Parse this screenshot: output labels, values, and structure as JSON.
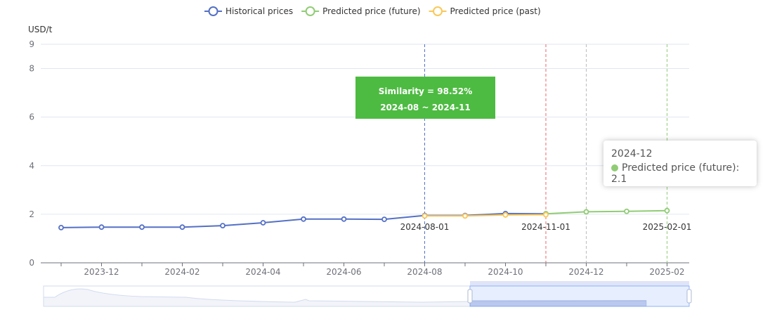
{
  "chart_data": {
    "type": "line",
    "unit_label": "USD/t",
    "x_ticks": [
      "2023-12",
      "2024-02",
      "2024-04",
      "2024-06",
      "2024-08",
      "2024-10",
      "2024-12",
      "2025-02"
    ],
    "y_ticks": [
      0,
      2,
      4,
      6,
      8,
      9
    ],
    "ylim": [
      0,
      9
    ],
    "legend_position": "top-center",
    "grid": true,
    "series": [
      {
        "name": "Historical prices",
        "color": "#5470c6",
        "points": [
          {
            "x": "2023-11",
            "y": 1.45
          },
          {
            "x": "2023-12",
            "y": 1.47
          },
          {
            "x": "2024-01",
            "y": 1.47
          },
          {
            "x": "2024-02",
            "y": 1.47
          },
          {
            "x": "2024-03",
            "y": 1.53
          },
          {
            "x": "2024-04",
            "y": 1.65
          },
          {
            "x": "2024-05",
            "y": 1.8
          },
          {
            "x": "2024-06",
            "y": 1.8
          },
          {
            "x": "2024-07",
            "y": 1.79
          },
          {
            "x": "2024-08",
            "y": 1.95
          },
          {
            "x": "2024-09",
            "y": 1.95
          },
          {
            "x": "2024-10",
            "y": 2.03
          },
          {
            "x": "2024-11",
            "y": 2.02
          }
        ]
      },
      {
        "name": "Predicted price (future)",
        "color": "#91cc75",
        "points": [
          {
            "x": "2024-11",
            "y": 2.02
          },
          {
            "x": "2024-12",
            "y": 2.1
          },
          {
            "x": "2025-01",
            "y": 2.12
          },
          {
            "x": "2025-02",
            "y": 2.15
          }
        ]
      },
      {
        "name": "Predicted price (past)",
        "color": "#fac858",
        "points": [
          {
            "x": "2024-08",
            "y": 1.93
          },
          {
            "x": "2024-09",
            "y": 1.93
          },
          {
            "x": "2024-10",
            "y": 1.97
          },
          {
            "x": "2024-11",
            "y": 1.98
          }
        ]
      }
    ],
    "vertical_markers": [
      {
        "x": "2024-08",
        "color": "#5470c6",
        "label": "2024-08-01"
      },
      {
        "x": "2024-11",
        "color": "#ee6666",
        "label": "2024-11-01"
      },
      {
        "x": "2024-12",
        "color": "#bbbbbb",
        "label": ""
      },
      {
        "x": "2025-02",
        "color": "#91cc75",
        "label": "2025-02-01"
      }
    ],
    "similarity_box": {
      "line1": "Similarity = 98.52%",
      "line2": "2024-08 ~ 2024-11",
      "color": "#4dbb41"
    },
    "tooltip": {
      "title": "2024-12",
      "series_name": "Predicted price (future)",
      "value": "2.1"
    }
  }
}
